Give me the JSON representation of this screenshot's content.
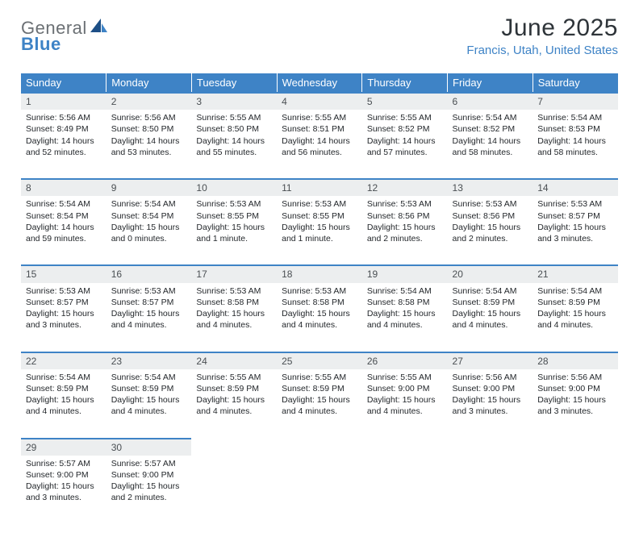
{
  "brand": {
    "part1": "General",
    "part2": "Blue"
  },
  "title": "June 2025",
  "location": "Francis, Utah, United States",
  "colors": {
    "accent": "#3e83c6",
    "header_text": "#ffffff",
    "daynum_bg": "#eceeef",
    "body_text": "#23272b",
    "muted_text": "#6b7074"
  },
  "weekdays": [
    "Sunday",
    "Monday",
    "Tuesday",
    "Wednesday",
    "Thursday",
    "Friday",
    "Saturday"
  ],
  "weeks": [
    [
      {
        "n": "1",
        "sunrise": "5:56 AM",
        "sunset": "8:49 PM",
        "daylight": "14 hours and 52 minutes."
      },
      {
        "n": "2",
        "sunrise": "5:56 AM",
        "sunset": "8:50 PM",
        "daylight": "14 hours and 53 minutes."
      },
      {
        "n": "3",
        "sunrise": "5:55 AM",
        "sunset": "8:50 PM",
        "daylight": "14 hours and 55 minutes."
      },
      {
        "n": "4",
        "sunrise": "5:55 AM",
        "sunset": "8:51 PM",
        "daylight": "14 hours and 56 minutes."
      },
      {
        "n": "5",
        "sunrise": "5:55 AM",
        "sunset": "8:52 PM",
        "daylight": "14 hours and 57 minutes."
      },
      {
        "n": "6",
        "sunrise": "5:54 AM",
        "sunset": "8:52 PM",
        "daylight": "14 hours and 58 minutes."
      },
      {
        "n": "7",
        "sunrise": "5:54 AM",
        "sunset": "8:53 PM",
        "daylight": "14 hours and 58 minutes."
      }
    ],
    [
      {
        "n": "8",
        "sunrise": "5:54 AM",
        "sunset": "8:54 PM",
        "daylight": "14 hours and 59 minutes."
      },
      {
        "n": "9",
        "sunrise": "5:54 AM",
        "sunset": "8:54 PM",
        "daylight": "15 hours and 0 minutes."
      },
      {
        "n": "10",
        "sunrise": "5:53 AM",
        "sunset": "8:55 PM",
        "daylight": "15 hours and 1 minute."
      },
      {
        "n": "11",
        "sunrise": "5:53 AM",
        "sunset": "8:55 PM",
        "daylight": "15 hours and 1 minute."
      },
      {
        "n": "12",
        "sunrise": "5:53 AM",
        "sunset": "8:56 PM",
        "daylight": "15 hours and 2 minutes."
      },
      {
        "n": "13",
        "sunrise": "5:53 AM",
        "sunset": "8:56 PM",
        "daylight": "15 hours and 2 minutes."
      },
      {
        "n": "14",
        "sunrise": "5:53 AM",
        "sunset": "8:57 PM",
        "daylight": "15 hours and 3 minutes."
      }
    ],
    [
      {
        "n": "15",
        "sunrise": "5:53 AM",
        "sunset": "8:57 PM",
        "daylight": "15 hours and 3 minutes."
      },
      {
        "n": "16",
        "sunrise": "5:53 AM",
        "sunset": "8:57 PM",
        "daylight": "15 hours and 4 minutes."
      },
      {
        "n": "17",
        "sunrise": "5:53 AM",
        "sunset": "8:58 PM",
        "daylight": "15 hours and 4 minutes."
      },
      {
        "n": "18",
        "sunrise": "5:53 AM",
        "sunset": "8:58 PM",
        "daylight": "15 hours and 4 minutes."
      },
      {
        "n": "19",
        "sunrise": "5:54 AM",
        "sunset": "8:58 PM",
        "daylight": "15 hours and 4 minutes."
      },
      {
        "n": "20",
        "sunrise": "5:54 AM",
        "sunset": "8:59 PM",
        "daylight": "15 hours and 4 minutes."
      },
      {
        "n": "21",
        "sunrise": "5:54 AM",
        "sunset": "8:59 PM",
        "daylight": "15 hours and 4 minutes."
      }
    ],
    [
      {
        "n": "22",
        "sunrise": "5:54 AM",
        "sunset": "8:59 PM",
        "daylight": "15 hours and 4 minutes."
      },
      {
        "n": "23",
        "sunrise": "5:54 AM",
        "sunset": "8:59 PM",
        "daylight": "15 hours and 4 minutes."
      },
      {
        "n": "24",
        "sunrise": "5:55 AM",
        "sunset": "8:59 PM",
        "daylight": "15 hours and 4 minutes."
      },
      {
        "n": "25",
        "sunrise": "5:55 AM",
        "sunset": "8:59 PM",
        "daylight": "15 hours and 4 minutes."
      },
      {
        "n": "26",
        "sunrise": "5:55 AM",
        "sunset": "9:00 PM",
        "daylight": "15 hours and 4 minutes."
      },
      {
        "n": "27",
        "sunrise": "5:56 AM",
        "sunset": "9:00 PM",
        "daylight": "15 hours and 3 minutes."
      },
      {
        "n": "28",
        "sunrise": "5:56 AM",
        "sunset": "9:00 PM",
        "daylight": "15 hours and 3 minutes."
      }
    ],
    [
      {
        "n": "29",
        "sunrise": "5:57 AM",
        "sunset": "9:00 PM",
        "daylight": "15 hours and 3 minutes."
      },
      {
        "n": "30",
        "sunrise": "5:57 AM",
        "sunset": "9:00 PM",
        "daylight": "15 hours and 2 minutes."
      },
      null,
      null,
      null,
      null,
      null
    ]
  ],
  "labels": {
    "sunrise": "Sunrise:",
    "sunset": "Sunset:",
    "daylight": "Daylight:"
  }
}
